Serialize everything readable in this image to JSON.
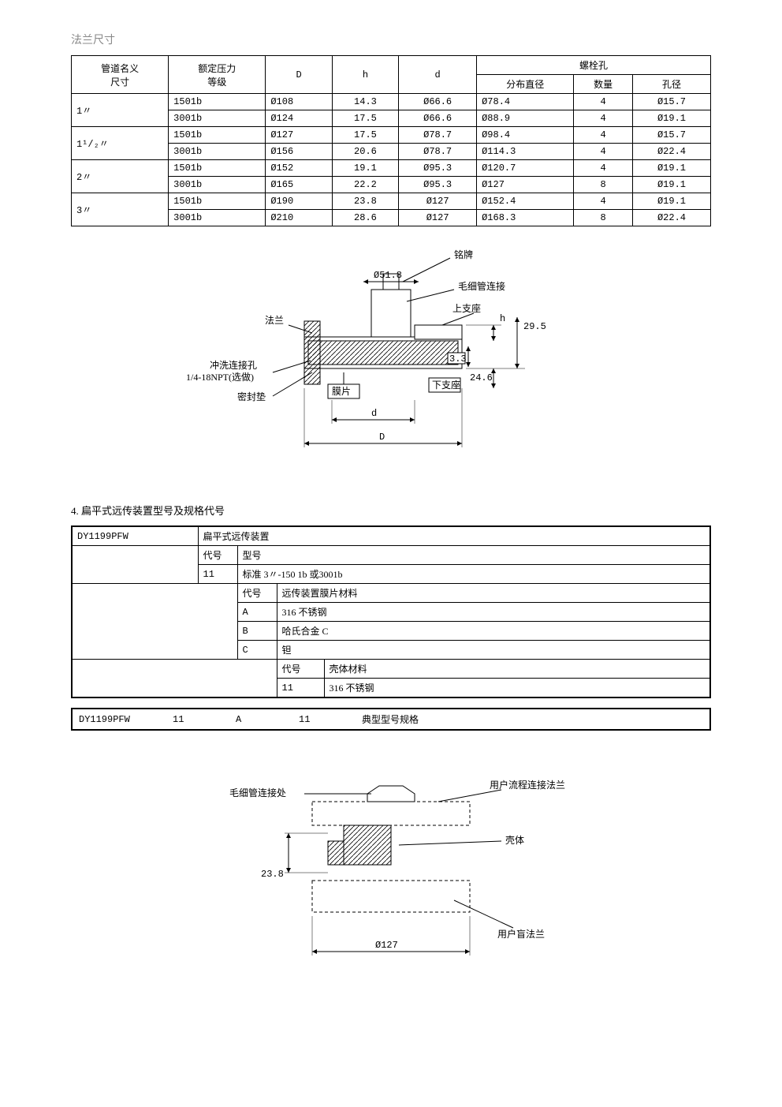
{
  "section_title": "法兰尺寸",
  "flange_table": {
    "header": {
      "pipe_name": "管道名义",
      "pipe_size": "尺寸",
      "pressure": "额定压力",
      "grade": "等级",
      "D": "D",
      "h": "h",
      "d": "d",
      "bolt_hole": "螺栓孔",
      "dist_dia": "分布直径",
      "count": "数量",
      "hole_dia": "孔径"
    },
    "rows": [
      {
        "size": "1〃",
        "grade": "1501b",
        "D": "Ø108",
        "h": "14.3",
        "d": "Ø66.6",
        "dist": "Ø78.4",
        "n": "4",
        "hd": "Ø15.7"
      },
      {
        "size": "",
        "grade": "3001b",
        "D": "Ø124",
        "h": "17.5",
        "d": "Ø66.6",
        "dist": "Ø88.9",
        "n": "4",
        "hd": "Ø19.1"
      },
      {
        "size": "1¹/₂〃",
        "grade": "1501b",
        "D": "Ø127",
        "h": "17.5",
        "d": "Ø78.7",
        "dist": "Ø98.4",
        "n": "4",
        "hd": "Ø15.7"
      },
      {
        "size": "",
        "grade": "3001b",
        "D": "Ø156",
        "h": "20.6",
        "d": "Ø78.7",
        "dist": "Ø114.3",
        "n": "4",
        "hd": "Ø22.4"
      },
      {
        "size": "2〃",
        "grade": "1501b",
        "D": "Ø152",
        "h": "19.1",
        "d": "Ø95.3",
        "dist": "Ø120.7",
        "n": "4",
        "hd": "Ø19.1"
      },
      {
        "size": "",
        "grade": "3001b",
        "D": "Ø165",
        "h": "22.2",
        "d": "Ø95.3",
        "dist": "Ø127",
        "n": "8",
        "hd": "Ø19.1"
      },
      {
        "size": "3〃",
        "grade": "1501b",
        "D": "Ø190",
        "h": "23.8",
        "d": "Ø127",
        "dist": "Ø152.4",
        "n": "4",
        "hd": "Ø19.1"
      },
      {
        "size": "",
        "grade": "3001b",
        "D": "Ø210",
        "h": "28.6",
        "d": "Ø127",
        "dist": "Ø168.3",
        "n": "8",
        "hd": "Ø22.4"
      }
    ]
  },
  "diagram1": {
    "labels": {
      "nameplate": "铭牌",
      "phi518": "Ø51.8",
      "capillary": "毛细管连接",
      "flange": "法兰",
      "upper_seat": "上支座",
      "h": "h",
      "v295": "29.5",
      "flush_port_1": "冲洗连接孔",
      "flush_port_2": "1/4-18NPT(选做)",
      "v33": "3.3",
      "v246": "24.6",
      "gasket": "密封垫",
      "diaphragm": "膜片",
      "lower_seat": "下支座",
      "d": "d",
      "D": "D"
    }
  },
  "subsection_title": "4. 扁平式远传装置型号及规格代号",
  "spec_table": {
    "model": "DY1199PFW",
    "model_desc": "扁平式远传装置",
    "code_label": "代号",
    "type_label": "型号",
    "r1_code": "11",
    "r1_desc": "标准 3〃-150 1b 或3001b",
    "membrane_label": "远传装置膜片材料",
    "mA_code": "A",
    "mA_desc": "316 不锈钢",
    "mB_code": "B",
    "mB_desc": "哈氏合金 C",
    "mC_code": "C",
    "mC_desc": "钽",
    "shell_label": "壳体材料",
    "s11_code": "11",
    "s11_desc": "316 不锈钢"
  },
  "example": {
    "model": "DY1199PFW",
    "c1": "11",
    "c2": "A",
    "c3": "11",
    "desc": "典型型号规格"
  },
  "diagram2": {
    "labels": {
      "capillary_conn": "毛细管连接处",
      "user_flange": "用户流程连接法兰",
      "shell": "壳体",
      "v238": "23.8",
      "user_blind": "用户盲法兰",
      "phi127": "Ø127"
    }
  }
}
